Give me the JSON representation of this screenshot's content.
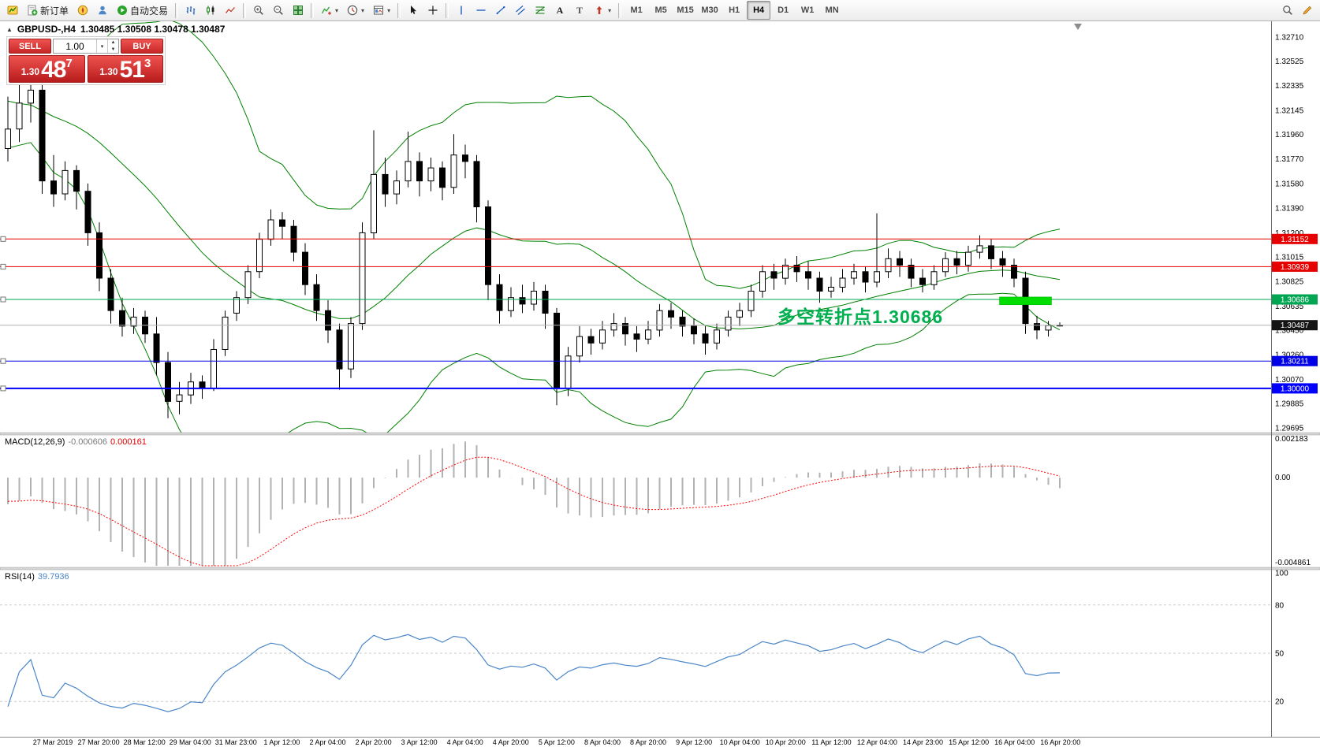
{
  "toolbar": {
    "buttons": [
      {
        "type": "icon",
        "name": "terminal-button",
        "icon": "terminal-icon"
      },
      {
        "type": "labeled",
        "name": "new-order-button",
        "icon": "new-order-icon",
        "label": "新订单"
      },
      {
        "type": "icon",
        "name": "navigator-button",
        "icon": "navigator-icon"
      },
      {
        "type": "icon",
        "name": "profile-button",
        "icon": "profile-icon"
      },
      {
        "type": "labeled",
        "name": "autotrade-button",
        "icon": "autotrade-icon",
        "label": "自动交易"
      },
      {
        "type": "sep"
      },
      {
        "type": "icon",
        "name": "bar-chart-button",
        "icon": "bars-chart-icon"
      },
      {
        "type": "icon",
        "name": "candle-chart-button",
        "icon": "candles-chart-icon"
      },
      {
        "type": "icon",
        "name": "line-chart-button",
        "icon": "line-chart-icon"
      },
      {
        "type": "sep"
      },
      {
        "type": "icon",
        "name": "zoom-in-button",
        "icon": "zoom-in-icon"
      },
      {
        "type": "icon",
        "name": "zoom-out-button",
        "icon": "zoom-out-icon"
      },
      {
        "type": "icon",
        "name": "tile-windows-button",
        "icon": "tile-windows-icon"
      },
      {
        "type": "sep"
      },
      {
        "type": "combo",
        "name": "indicators-button",
        "icon": "indicators-icon"
      },
      {
        "type": "combo",
        "name": "periods-button",
        "icon": "periods-icon"
      },
      {
        "type": "combo",
        "name": "templates-button",
        "icon": "templates-icon"
      },
      {
        "type": "sep"
      },
      {
        "type": "icon",
        "name": "cursor-button",
        "icon": "cursor-icon"
      },
      {
        "type": "icon",
        "name": "crosshair-button",
        "icon": "crosshair-icon"
      },
      {
        "type": "sep"
      },
      {
        "type": "icon",
        "name": "vertical-line-button",
        "icon": "vline-icon"
      },
      {
        "type": "icon",
        "name": "horizontal-line-button",
        "icon": "hline-icon"
      },
      {
        "type": "icon",
        "name": "trendline-button",
        "icon": "trendline-icon"
      },
      {
        "type": "icon",
        "name": "channel-button",
        "icon": "channel-icon"
      },
      {
        "type": "icon",
        "name": "fibonacci-button",
        "icon": "fibonacci-icon"
      },
      {
        "type": "icon",
        "name": "text-button",
        "icon": "text-icon"
      },
      {
        "type": "icon",
        "name": "label-button",
        "icon": "label-icon"
      },
      {
        "type": "combo",
        "name": "arrows-button",
        "icon": "arrows-icon"
      },
      {
        "type": "sep"
      }
    ],
    "timeframes": [
      "M1",
      "M5",
      "M15",
      "M30",
      "H1",
      "H4",
      "D1",
      "W1",
      "MN"
    ],
    "active_timeframe": "H4",
    "right_buttons": [
      {
        "name": "search-button",
        "icon": "search-icon"
      },
      {
        "name": "edit-button",
        "icon": "pencil-icon"
      }
    ]
  },
  "chart_header": {
    "collapse_glyph": "▲",
    "symbol_period": "GBPUSD-,H4",
    "ohlc": "1.30485 1.30508 1.30478 1.30487"
  },
  "trade_panel": {
    "sell_label": "SELL",
    "buy_label": "BUY",
    "volume": "1.00",
    "sell_price": {
      "prefix": "1.30",
      "big": "48",
      "sup": "7"
    },
    "buy_price": {
      "prefix": "1.30",
      "big": "51",
      "sup": "3"
    }
  },
  "annotation": {
    "text": "多空转折点1.30686"
  },
  "levels": [
    {
      "label": "1.31152",
      "price": 1.31152,
      "color": "#e60000",
      "width": 1
    },
    {
      "label": "1.30939",
      "price": 1.30939,
      "color": "#e60000",
      "width": 1
    },
    {
      "label": "1.30686",
      "price": 1.30686,
      "color": "#00a651",
      "width": 1
    },
    {
      "label": "1.30211",
      "price": 1.30211,
      "color": "#0000e6",
      "width": 1
    },
    {
      "label": "1.30000",
      "price": 1.3,
      "color": "#0000ff",
      "width": 2
    }
  ],
  "current_price": {
    "label": "1.30487",
    "price": 1.30487
  },
  "highlight_rect": {
    "from_candle": 87,
    "to_candle": 91,
    "price_top": 1.30705,
    "price_bottom": 1.30645
  },
  "price_axis": {
    "labels": [
      "1.32710",
      "1.32525",
      "1.32335",
      "1.32145",
      "1.31960",
      "1.31770",
      "1.31580",
      "1.31390",
      "1.31200",
      "1.31015",
      "1.30825",
      "1.30635",
      "1.30450",
      "1.30260",
      "1.30070",
      "1.29885",
      "1.29695"
    ]
  },
  "time_axis": [
    "27 Mar 2019",
    "27 Mar 20:00",
    "28 Mar 12:00",
    "29 Mar 04:00",
    "31 Mar 23:00",
    "1 Apr 12:00",
    "2 Apr 04:00",
    "2 Apr 20:00",
    "3 Apr 12:00",
    "4 Apr 04:00",
    "4 Apr 20:00",
    "5 Apr 12:00",
    "8 Apr 04:00",
    "8 Apr 20:00",
    "9 Apr 12:00",
    "10 Apr 04:00",
    "10 Apr 20:00",
    "11 Apr 12:00",
    "12 Apr 04:00",
    "14 Apr 23:00",
    "15 Apr 12:00",
    "16 Apr 04:00",
    "16 Apr 20:00"
  ],
  "macd": {
    "label": "MACD(12,26,9)",
    "value_main": "-0.000606",
    "value_signal": "0.000161",
    "scale": [
      "0.002183",
      "0.00",
      "-0.004861"
    ],
    "scale_max": 0.002183,
    "scale_min": -0.004861
  },
  "rsi": {
    "label": "RSI(14)",
    "value": "39.7936",
    "scale_labels": [
      "100",
      "80",
      "50",
      "20"
    ],
    "levels": [
      80,
      50,
      20
    ],
    "scale_max": 100,
    "scale_min": 0
  },
  "colors": {
    "bull": "#ffffff",
    "bear": "#000000",
    "outline": "#000000",
    "bollinger": "#008000",
    "macd_hist": "#b2b2b2",
    "macd_signal": "#ff0000",
    "rsi_line": "#4a86c8",
    "annotation_green": "#00b050",
    "highlight_green": "#00dd00",
    "current_price_badge": "#141414",
    "axis_text": "#000000"
  },
  "chart_data": {
    "type": "candlestick",
    "symbol": "GBPUSD-",
    "timeframe": "H4",
    "indicators": [
      "Bollinger Bands(20,2)",
      "MACD(12,26,9)",
      "RSI(14)"
    ],
    "y_view_max": 1.32831,
    "y_view_min": 1.29653,
    "preroll_closes": [
      1.3262,
      1.3258,
      1.3252,
      1.3248,
      1.3242,
      1.3238,
      1.3232,
      1.3228,
      1.3224,
      1.322,
      1.3218,
      1.3222,
      1.3216,
      1.3212,
      1.3208,
      1.3212,
      1.3206,
      1.3202,
      1.3198,
      1.3195
    ],
    "candles": [
      [
        1.3185,
        1.3225,
        1.3175,
        1.32
      ],
      [
        1.32,
        1.3235,
        1.319,
        1.322
      ],
      [
        1.322,
        1.324,
        1.3205,
        1.323
      ],
      [
        1.323,
        1.3245,
        1.315,
        1.316
      ],
      [
        1.316,
        1.318,
        1.314,
        1.315
      ],
      [
        1.315,
        1.3175,
        1.3145,
        1.3168
      ],
      [
        1.3168,
        1.3172,
        1.3138,
        1.3152
      ],
      [
        1.3152,
        1.3158,
        1.311,
        1.312
      ],
      [
        1.312,
        1.3128,
        1.3075,
        1.3085
      ],
      [
        1.3085,
        1.3092,
        1.305,
        1.306
      ],
      [
        1.306,
        1.307,
        1.304,
        1.3048
      ],
      [
        1.3048,
        1.3062,
        1.3042,
        1.3055
      ],
      [
        1.3055,
        1.306,
        1.3035,
        1.3042
      ],
      [
        1.3042,
        1.3055,
        1.301,
        1.302
      ],
      [
        1.302,
        1.3028,
        1.2977,
        1.299
      ],
      [
        1.299,
        1.3005,
        1.298,
        1.2995
      ],
      [
        1.2995,
        1.3012,
        1.2988,
        1.3005
      ],
      [
        1.3005,
        1.301,
        1.2992,
        1.3
      ],
      [
        1.3,
        1.3038,
        1.2998,
        1.303
      ],
      [
        1.303,
        1.306,
        1.3025,
        1.3055
      ],
      [
        1.3058,
        1.3075,
        1.3052,
        1.307
      ],
      [
        1.307,
        1.3095,
        1.3065,
        1.309
      ],
      [
        1.309,
        1.312,
        1.3085,
        1.3115
      ],
      [
        1.3115,
        1.3138,
        1.311,
        1.313
      ],
      [
        1.313,
        1.3136,
        1.3115,
        1.3125
      ],
      [
        1.3125,
        1.313,
        1.3098,
        1.3105
      ],
      [
        1.3105,
        1.3112,
        1.3072,
        1.308
      ],
      [
        1.308,
        1.3088,
        1.3052,
        1.306
      ],
      [
        1.306,
        1.3068,
        1.3035,
        1.3045
      ],
      [
        1.3045,
        1.305,
        1.2999,
        1.3015
      ],
      [
        1.3015,
        1.3055,
        1.3008,
        1.305
      ],
      [
        1.305,
        1.3128,
        1.3045,
        1.312
      ],
      [
        1.312,
        1.3199,
        1.3115,
        1.3165
      ],
      [
        1.3165,
        1.3178,
        1.314,
        1.315
      ],
      [
        1.315,
        1.3168,
        1.3142,
        1.316
      ],
      [
        1.316,
        1.3198,
        1.3155,
        1.3175
      ],
      [
        1.3175,
        1.3182,
        1.3148,
        1.316
      ],
      [
        1.316,
        1.3178,
        1.3152,
        1.317
      ],
      [
        1.317,
        1.3175,
        1.3145,
        1.3155
      ],
      [
        1.3155,
        1.3196,
        1.315,
        1.318
      ],
      [
        1.318,
        1.3188,
        1.3162,
        1.3175
      ],
      [
        1.3175,
        1.318,
        1.3128,
        1.314
      ],
      [
        1.314,
        1.3145,
        1.3068,
        1.308
      ],
      [
        1.308,
        1.3088,
        1.305,
        1.306
      ],
      [
        1.306,
        1.3078,
        1.3055,
        1.307
      ],
      [
        1.307,
        1.308,
        1.3058,
        1.3065
      ],
      [
        1.3065,
        1.3082,
        1.306,
        1.3075
      ],
      [
        1.3075,
        1.308,
        1.3046,
        1.3058
      ],
      [
        1.3058,
        1.3062,
        1.2987,
        1.3
      ],
      [
        1.3,
        1.3032,
        1.2994,
        1.3025
      ],
      [
        1.3025,
        1.3048,
        1.302,
        1.304
      ],
      [
        1.304,
        1.3046,
        1.3026,
        1.3035
      ],
      [
        1.3035,
        1.3052,
        1.303,
        1.3045
      ],
      [
        1.3045,
        1.3058,
        1.304,
        1.305
      ],
      [
        1.305,
        1.3055,
        1.3033,
        1.3042
      ],
      [
        1.3042,
        1.3048,
        1.3028,
        1.3038
      ],
      [
        1.3038,
        1.3052,
        1.3034,
        1.3045
      ],
      [
        1.3045,
        1.3065,
        1.304,
        1.306
      ],
      [
        1.306,
        1.3066,
        1.3046,
        1.3055
      ],
      [
        1.3055,
        1.306,
        1.304,
        1.3048
      ],
      [
        1.3048,
        1.3054,
        1.3034,
        1.3042
      ],
      [
        1.3042,
        1.3048,
        1.3026,
        1.3035
      ],
      [
        1.3035,
        1.305,
        1.303,
        1.3045
      ],
      [
        1.3045,
        1.306,
        1.304,
        1.3055
      ],
      [
        1.3055,
        1.3066,
        1.3048,
        1.306
      ],
      [
        1.306,
        1.308,
        1.3055,
        1.3075
      ],
      [
        1.3075,
        1.3095,
        1.307,
        1.309
      ],
      [
        1.309,
        1.3096,
        1.3076,
        1.3085
      ],
      [
        1.3085,
        1.31,
        1.308,
        1.3095
      ],
      [
        1.3095,
        1.3102,
        1.3082,
        1.309
      ],
      [
        1.309,
        1.3098,
        1.3076,
        1.3085
      ],
      [
        1.3085,
        1.309,
        1.3066,
        1.3075
      ],
      [
        1.3075,
        1.3086,
        1.307,
        1.3078
      ],
      [
        1.3078,
        1.3092,
        1.3074,
        1.3085
      ],
      [
        1.3085,
        1.3096,
        1.308,
        1.309
      ],
      [
        1.309,
        1.3094,
        1.3074,
        1.3082
      ],
      [
        1.3082,
        1.3135,
        1.3078,
        1.309
      ],
      [
        1.309,
        1.3108,
        1.3085,
        1.31
      ],
      [
        1.31,
        1.3106,
        1.3086,
        1.3095
      ],
      [
        1.3095,
        1.31,
        1.3078,
        1.3085
      ],
      [
        1.3085,
        1.3092,
        1.3074,
        1.308
      ],
      [
        1.308,
        1.3095,
        1.3076,
        1.309
      ],
      [
        1.309,
        1.3105,
        1.3086,
        1.31
      ],
      [
        1.31,
        1.3106,
        1.3088,
        1.3095
      ],
      [
        1.3095,
        1.311,
        1.309,
        1.3105
      ],
      [
        1.3105,
        1.3118,
        1.31,
        1.311
      ],
      [
        1.311,
        1.3115,
        1.3092,
        1.31
      ],
      [
        1.31,
        1.3106,
        1.3086,
        1.3095
      ],
      [
        1.3095,
        1.31,
        1.3078,
        1.3085
      ],
      [
        1.3085,
        1.309,
        1.3042,
        1.305
      ],
      [
        1.305,
        1.3056,
        1.3038,
        1.3045
      ],
      [
        1.3045,
        1.3052,
        1.304,
        1.30485
      ],
      [
        1.30485,
        1.30508,
        1.30478,
        1.30487
      ]
    ]
  }
}
